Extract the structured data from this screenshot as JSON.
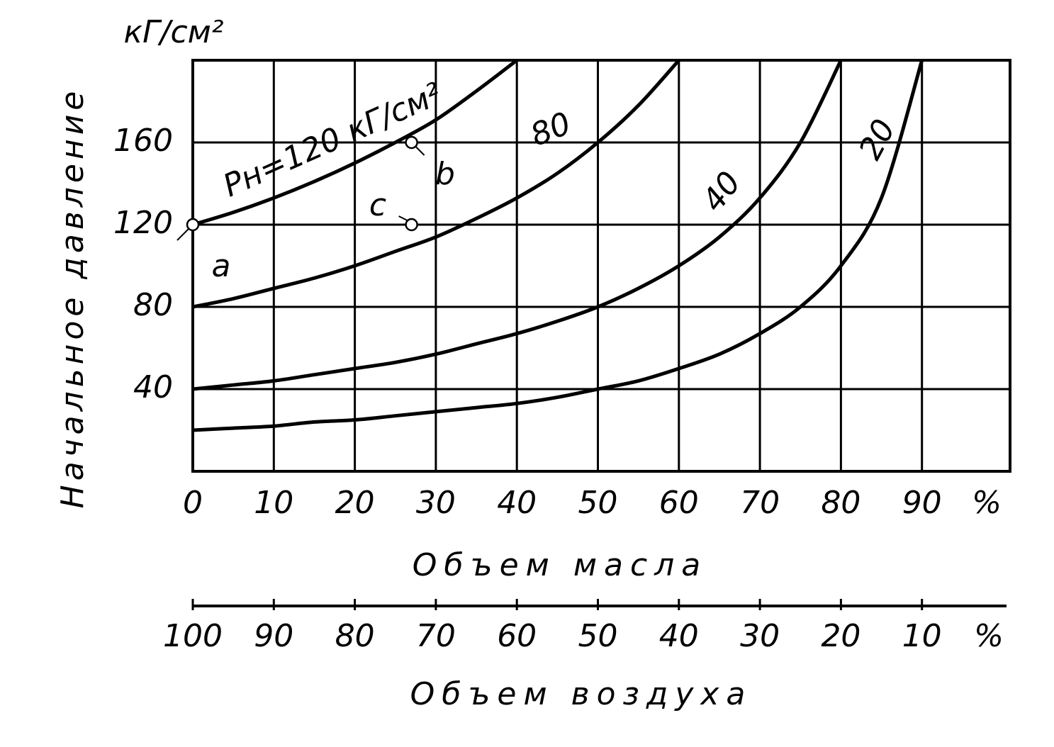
{
  "chart_data": {
    "type": "line",
    "y_unit": "кГ/см²",
    "ylabel": "Начальное давление",
    "xlabel": "Объем масла",
    "x_unit": "%",
    "xlim": [
      0,
      100
    ],
    "xticks": [
      0,
      10,
      20,
      30,
      40,
      50,
      60,
      70,
      80,
      90
    ],
    "ylim": [
      0,
      200
    ],
    "yticks": [
      40,
      80,
      120,
      160
    ],
    "grid": true,
    "x2label": "Объем воздуха",
    "x2_unit": "%",
    "x2lim": [
      100,
      0
    ],
    "x2ticks": [
      100,
      90,
      80,
      70,
      60,
      50,
      40,
      30,
      20,
      10
    ],
    "series": [
      {
        "name": "Pн=120 кГ/см²",
        "color": "#000000",
        "x": [
          0,
          5,
          10,
          15,
          20,
          25,
          30,
          35,
          40
        ],
        "values": [
          120,
          126,
          133,
          141,
          150,
          160,
          171,
          185,
          200
        ]
      },
      {
        "name": "80",
        "color": "#000000",
        "x": [
          0,
          5,
          10,
          15,
          20,
          25,
          30,
          35,
          40,
          45,
          50,
          55,
          60
        ],
        "values": [
          80,
          84,
          89,
          94,
          100,
          107,
          114,
          123,
          133,
          145,
          160,
          178,
          200
        ]
      },
      {
        "name": "40",
        "color": "#000000",
        "x": [
          0,
          5,
          10,
          15,
          20,
          25,
          30,
          35,
          40,
          45,
          50,
          55,
          60,
          65,
          70,
          75,
          80
        ],
        "values": [
          40,
          42,
          44,
          47,
          50,
          53,
          57,
          62,
          67,
          73,
          80,
          89,
          100,
          114,
          133,
          160,
          200
        ]
      },
      {
        "name": "20",
        "color": "#000000",
        "x": [
          0,
          5,
          10,
          15,
          20,
          25,
          30,
          35,
          40,
          45,
          50,
          55,
          60,
          65,
          70,
          75,
          80,
          85,
          90
        ],
        "values": [
          20,
          21,
          22,
          24,
          25,
          27,
          29,
          31,
          33,
          36,
          40,
          44,
          50,
          57,
          67,
          80,
          100,
          133,
          200
        ]
      }
    ],
    "points": [
      {
        "label": "a",
        "x": 0,
        "y": 120
      },
      {
        "label": "b",
        "x": 27,
        "y": 160
      },
      {
        "label": "c",
        "x": 27,
        "y": 120
      }
    ]
  }
}
